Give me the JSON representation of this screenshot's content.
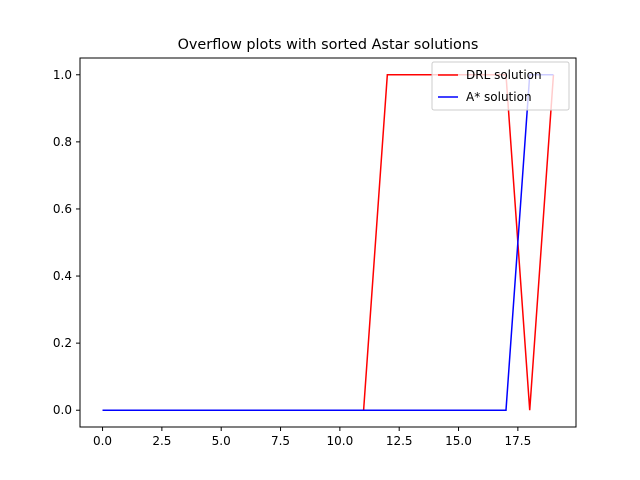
{
  "chart_data": {
    "type": "line",
    "title": "Overflow plots with sorted Astar solutions",
    "xlabel": "",
    "ylabel": "",
    "xlim": [
      -0.95,
      19.95
    ],
    "ylim": [
      -0.05,
      1.05
    ],
    "xticks": [
      "0.0",
      "2.5",
      "5.0",
      "7.5",
      "10.0",
      "12.5",
      "15.0",
      "17.5"
    ],
    "xtick_values": [
      0,
      2.5,
      5,
      7.5,
      10,
      12.5,
      15,
      17.5
    ],
    "yticks": [
      "0.0",
      "0.2",
      "0.4",
      "0.6",
      "0.8",
      "1.0"
    ],
    "ytick_values": [
      0,
      0.2,
      0.4,
      0.6,
      0.8,
      1.0
    ],
    "grid": false,
    "legend_position": "top-right",
    "x": [
      0,
      1,
      2,
      3,
      4,
      5,
      6,
      7,
      8,
      9,
      10,
      11,
      12,
      13,
      14,
      15,
      16,
      17,
      18,
      19
    ],
    "series": [
      {
        "name": "DRL solution",
        "color": "#ff0000",
        "values": [
          0,
          0,
          0,
          0,
          0,
          0,
          0,
          0,
          0,
          0,
          0,
          0,
          1,
          1,
          1,
          1,
          1,
          1,
          0,
          1
        ]
      },
      {
        "name": "A* solution",
        "color": "#0000ff",
        "values": [
          0,
          0,
          0,
          0,
          0,
          0,
          0,
          0,
          0,
          0,
          0,
          0,
          0,
          0,
          0,
          0,
          0,
          0,
          1,
          1
        ]
      }
    ]
  }
}
